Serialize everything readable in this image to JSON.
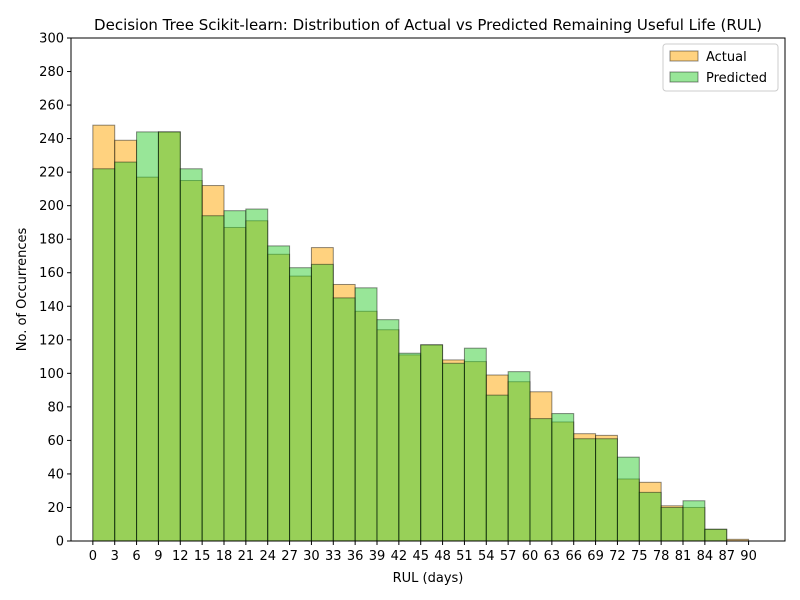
{
  "chart_data": {
    "type": "bar",
    "title": "Decision Tree Scikit-learn: Distribution of Actual vs Predicted Remaining Useful Life (RUL)",
    "xlabel": "RUL (days)",
    "ylabel": "No. of Occurrences",
    "ylim": [
      0,
      300
    ],
    "xlim": [
      -3,
      95
    ],
    "y_ticks": [
      0,
      20,
      40,
      60,
      80,
      100,
      120,
      140,
      160,
      180,
      200,
      220,
      240,
      260,
      280,
      300
    ],
    "x_ticks": [
      0,
      3,
      6,
      9,
      12,
      15,
      18,
      21,
      24,
      27,
      30,
      33,
      36,
      39,
      42,
      45,
      48,
      51,
      54,
      57,
      60,
      63,
      66,
      69,
      72,
      75,
      78,
      81,
      84,
      87,
      90
    ],
    "bin_edges": [
      0,
      3,
      6,
      9,
      12,
      15,
      18,
      21,
      24,
      27,
      30,
      33,
      36,
      39,
      42,
      45,
      48,
      51,
      54,
      57,
      60,
      63,
      66,
      69,
      72,
      75,
      78,
      81,
      84,
      87,
      90
    ],
    "legend_position": "top-right",
    "grid": false,
    "series": [
      {
        "name": "Actual",
        "color": "#ffa500",
        "values": [
          248,
          239,
          217,
          244,
          215,
          212,
          187,
          191,
          171,
          158,
          175,
          153,
          137,
          126,
          111,
          117,
          108,
          107,
          99,
          95,
          89,
          71,
          64,
          63,
          37,
          35,
          21,
          20,
          7,
          1
        ]
      },
      {
        "name": "Predicted",
        "color": "#32cd32",
        "values": [
          222,
          226,
          244,
          244,
          222,
          194,
          197,
          198,
          176,
          163,
          165,
          145,
          151,
          132,
          112,
          117,
          106,
          115,
          87,
          101,
          73,
          76,
          61,
          61,
          50,
          29,
          20,
          24,
          7,
          0
        ]
      }
    ]
  }
}
